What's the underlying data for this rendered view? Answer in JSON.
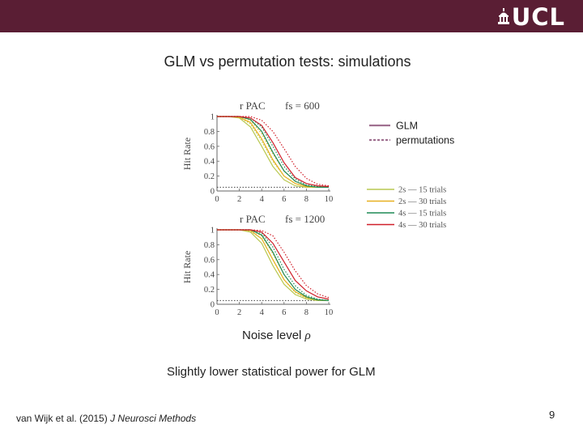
{
  "slide": {
    "title": "GLM vs permutation tests: simulations",
    "logo_text": "UCL",
    "subtitle": "Slightly lower statistical power for GLM",
    "citation_authors": "van Wijk et al. (2015)",
    "citation_journal": "J Neurosci Methods",
    "page_number": "9",
    "xlabel_prefix": "Noise level",
    "xlabel_symbol": "ρ"
  },
  "colors": {
    "header_bg": "#5a1e34",
    "legend_method": "#a07090",
    "c2s15": "#b8c850",
    "c2s30": "#e8b020",
    "c4s15": "#1f8a55",
    "c4s30": "#d01f2a"
  },
  "legend": {
    "methods": [
      {
        "label": "GLM",
        "dash": false
      },
      {
        "label": "permutations",
        "dash": true
      }
    ],
    "conditions": [
      {
        "label": "2s — 15 trials",
        "color": "#b8c850"
      },
      {
        "label": "2s — 30 trials",
        "color": "#e8b020"
      },
      {
        "label": "4s — 15 trials",
        "color": "#1f8a55"
      },
      {
        "label": "4s — 30 trials",
        "color": "#d01f2a"
      }
    ]
  },
  "chart_data": [
    {
      "type": "line",
      "title_left": "r PAC",
      "title_right": "fs = 600",
      "ylabel": "Hit Rate",
      "x": [
        0,
        1,
        2,
        3,
        4,
        5,
        6,
        7,
        8,
        9,
        10
      ],
      "xticks": [
        "0",
        "2",
        "4",
        "6",
        "8",
        "10"
      ],
      "yticks": [
        "0",
        "0.2",
        "0.4",
        "0.6",
        "0.8",
        "1"
      ],
      "xlim": [
        0,
        10
      ],
      "ylim": [
        0,
        1
      ],
      "reference_y": 0.05,
      "series": [
        {
          "name": "2s — 15 trials GLM",
          "color": "#b8c850",
          "dash": false,
          "values": [
            1,
            1,
            0.98,
            0.86,
            0.6,
            0.33,
            0.15,
            0.07,
            0.05,
            0.05,
            0.05
          ]
        },
        {
          "name": "2s — 15 trials permutations",
          "color": "#b8c850",
          "dash": true,
          "values": [
            1,
            1,
            0.99,
            0.9,
            0.67,
            0.4,
            0.2,
            0.1,
            0.06,
            0.05,
            0.05
          ]
        },
        {
          "name": "2s — 30 trials GLM",
          "color": "#e8b020",
          "dash": false,
          "values": [
            1,
            1,
            0.99,
            0.92,
            0.7,
            0.42,
            0.2,
            0.1,
            0.06,
            0.05,
            0.05
          ]
        },
        {
          "name": "2s — 30 trials permutations",
          "color": "#e8b020",
          "dash": true,
          "values": [
            1,
            1,
            1,
            0.95,
            0.77,
            0.5,
            0.27,
            0.13,
            0.07,
            0.05,
            0.05
          ]
        },
        {
          "name": "4s — 15 trials GLM",
          "color": "#1f8a55",
          "dash": false,
          "values": [
            1,
            1,
            1,
            0.96,
            0.8,
            0.52,
            0.27,
            0.13,
            0.07,
            0.05,
            0.05
          ]
        },
        {
          "name": "4s — 15 trials permutations",
          "color": "#1f8a55",
          "dash": true,
          "values": [
            1,
            1,
            1,
            0.98,
            0.86,
            0.6,
            0.33,
            0.16,
            0.08,
            0.06,
            0.05
          ]
        },
        {
          "name": "4s — 30 trials GLM",
          "color": "#d01f2a",
          "dash": false,
          "values": [
            1,
            1,
            1,
            0.98,
            0.88,
            0.65,
            0.38,
            0.18,
            0.1,
            0.07,
            0.06
          ]
        },
        {
          "name": "4s — 30 trials permutations",
          "color": "#d01f2a",
          "dash": true,
          "values": [
            1,
            1,
            1,
            1,
            0.95,
            0.8,
            0.57,
            0.33,
            0.17,
            0.09,
            0.07
          ]
        }
      ]
    },
    {
      "type": "line",
      "title_left": "r PAC",
      "title_right": "fs = 1200",
      "ylabel": "Hit Rate",
      "x": [
        0,
        1,
        2,
        3,
        4,
        5,
        6,
        7,
        8,
        9,
        10
      ],
      "xticks": [
        "0",
        "2",
        "4",
        "6",
        "8",
        "10"
      ],
      "yticks": [
        "0",
        "0.2",
        "0.4",
        "0.6",
        "0.8",
        "1"
      ],
      "xlim": [
        0,
        10
      ],
      "ylim": [
        0,
        1
      ],
      "reference_y": 0.05,
      "series": [
        {
          "name": "2s — 15 trials GLM",
          "color": "#b8c850",
          "dash": false,
          "values": [
            1,
            1,
            1,
            0.97,
            0.82,
            0.52,
            0.27,
            0.13,
            0.07,
            0.05,
            0.05
          ]
        },
        {
          "name": "2s — 15 trials permutations",
          "color": "#b8c850",
          "dash": true,
          "values": [
            1,
            1,
            1,
            0.98,
            0.88,
            0.6,
            0.33,
            0.16,
            0.08,
            0.06,
            0.05
          ]
        },
        {
          "name": "2s — 30 trials GLM",
          "color": "#e8b020",
          "dash": false,
          "values": [
            1,
            1,
            1,
            0.99,
            0.88,
            0.6,
            0.33,
            0.17,
            0.09,
            0.06,
            0.05
          ]
        },
        {
          "name": "2s — 30 trials permutations",
          "color": "#e8b020",
          "dash": true,
          "values": [
            1,
            1,
            1,
            1,
            0.92,
            0.68,
            0.4,
            0.2,
            0.1,
            0.06,
            0.05
          ]
        },
        {
          "name": "4s — 15 trials GLM",
          "color": "#1f8a55",
          "dash": false,
          "values": [
            1,
            1,
            1,
            1,
            0.93,
            0.7,
            0.4,
            0.2,
            0.1,
            0.06,
            0.05
          ]
        },
        {
          "name": "4s — 15 trials permutations",
          "color": "#1f8a55",
          "dash": true,
          "values": [
            1,
            1,
            1,
            1,
            0.96,
            0.77,
            0.47,
            0.25,
            0.12,
            0.07,
            0.05
          ]
        },
        {
          "name": "4s — 30 trials GLM",
          "color": "#d01f2a",
          "dash": false,
          "values": [
            1,
            1,
            1,
            1,
            0.97,
            0.82,
            0.57,
            0.32,
            0.18,
            0.1,
            0.07
          ]
        },
        {
          "name": "4s — 30 trials permutations",
          "color": "#d01f2a",
          "dash": true,
          "values": [
            1,
            1,
            1,
            1,
            0.99,
            0.92,
            0.7,
            0.45,
            0.25,
            0.14,
            0.09
          ]
        }
      ]
    }
  ]
}
